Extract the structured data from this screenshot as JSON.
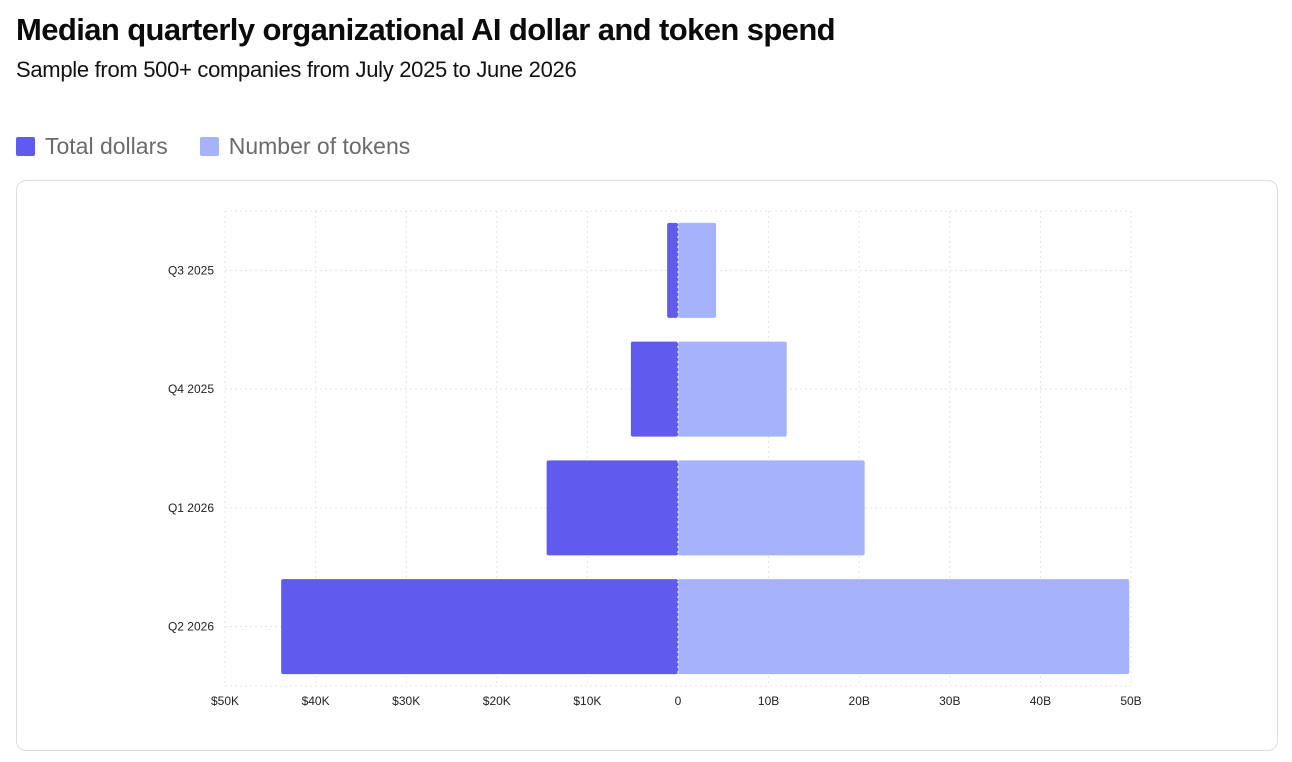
{
  "title": "Median quarterly organizational AI dollar and token spend",
  "subtitle": "Sample from 500+ companies from July 2025 to June 2026",
  "legend": {
    "dollars_label": "Total dollars",
    "tokens_label": "Number of tokens"
  },
  "colors": {
    "dollars": "#605bec",
    "tokens": "#a5b2fc",
    "grid": "#e4e4e4",
    "zero_line": "#c8c8c8"
  },
  "chart_data": {
    "type": "bar",
    "orientation": "horizontal-diverging",
    "categories": [
      "Q3 2025",
      "Q4 2025",
      "Q1 2026",
      "Q2 2026"
    ],
    "series": [
      {
        "name": "Total dollars",
        "side": "left",
        "unit": "USD",
        "values": [
          1200,
          5200,
          14500,
          43800
        ]
      },
      {
        "name": "Number of tokens",
        "side": "right",
        "unit": "tokens",
        "values": [
          4200000000,
          12000000000,
          20600000000,
          49800000000
        ]
      }
    ],
    "left_axis": {
      "range": [
        0,
        50000
      ],
      "ticks": [
        50000,
        40000,
        30000,
        20000,
        10000
      ],
      "tick_labels": [
        "$50K",
        "$40K",
        "$30K",
        "$20K",
        "$10K"
      ]
    },
    "right_axis": {
      "range": [
        0,
        50000000000
      ],
      "ticks": [
        10000000000,
        20000000000,
        30000000000,
        40000000000,
        50000000000
      ],
      "tick_labels": [
        "10B",
        "20B",
        "30B",
        "40B",
        "50B"
      ]
    },
    "zero_label": "0",
    "grid": true,
    "legend_position": "top-left"
  }
}
